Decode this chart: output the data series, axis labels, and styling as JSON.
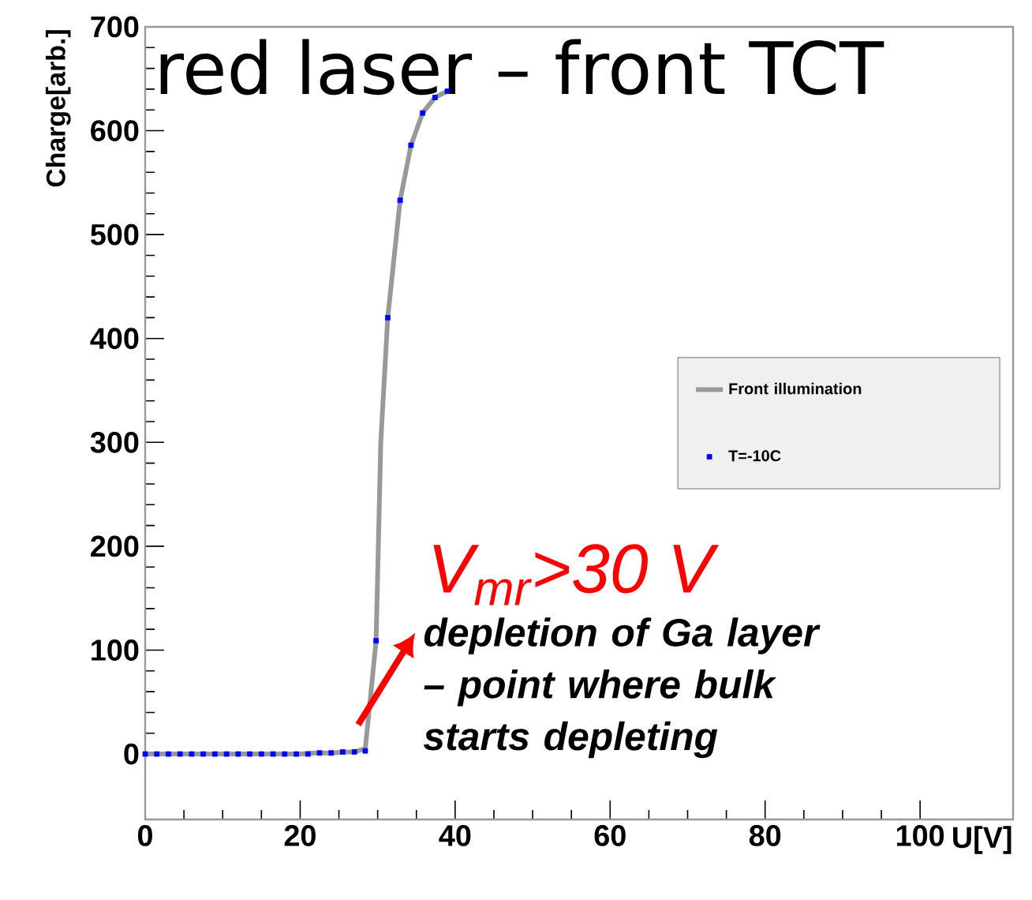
{
  "chart_data": {
    "type": "line",
    "title": "red laser – front TCT",
    "xlabel": "U[V]",
    "ylabel": "Charge[arb.]",
    "xlim": [
      0,
      112
    ],
    "ylim": [
      -63,
      700
    ],
    "xticks": [
      0,
      20,
      40,
      60,
      80,
      100
    ],
    "yticks": [
      0,
      100,
      200,
      300,
      400,
      500,
      600,
      700
    ],
    "grid": false,
    "legend": "right",
    "series": [
      {
        "name": "Front illumination",
        "color": "#999999",
        "marker": "none",
        "x": [
          0,
          5,
          10,
          15,
          20,
          22,
          24,
          26,
          27,
          28.4,
          29.8,
          30.4,
          31.3,
          32.9,
          34.3,
          35.8,
          37.4,
          39
        ],
        "values": [
          0,
          0,
          0,
          0,
          0,
          1,
          1,
          2,
          2,
          5,
          109,
          300,
          420,
          533,
          586,
          617,
          632,
          638
        ]
      },
      {
        "name": "T=-10C",
        "type": "scatter",
        "color": "#0000ff",
        "marker": "square",
        "x": [
          0,
          1.5,
          3,
          4.5,
          6,
          7.5,
          9,
          10.5,
          12,
          13.5,
          15,
          16.5,
          18,
          19.5,
          21,
          22.5,
          24,
          25.5,
          27,
          28.4,
          29.8,
          31.3,
          32.9,
          34.3,
          35.8,
          37.4,
          39
        ],
        "values": [
          0,
          0,
          0,
          0,
          0,
          0,
          0,
          0,
          0,
          0,
          0,
          0,
          0,
          0,
          0,
          1,
          1,
          2,
          2,
          3,
          109,
          420,
          533,
          586,
          617,
          632,
          638
        ]
      }
    ],
    "annotations": [
      "V$_{mr}$>30 V",
      "depletion of Ga layer – point where bulk starts depleting"
    ]
  }
}
